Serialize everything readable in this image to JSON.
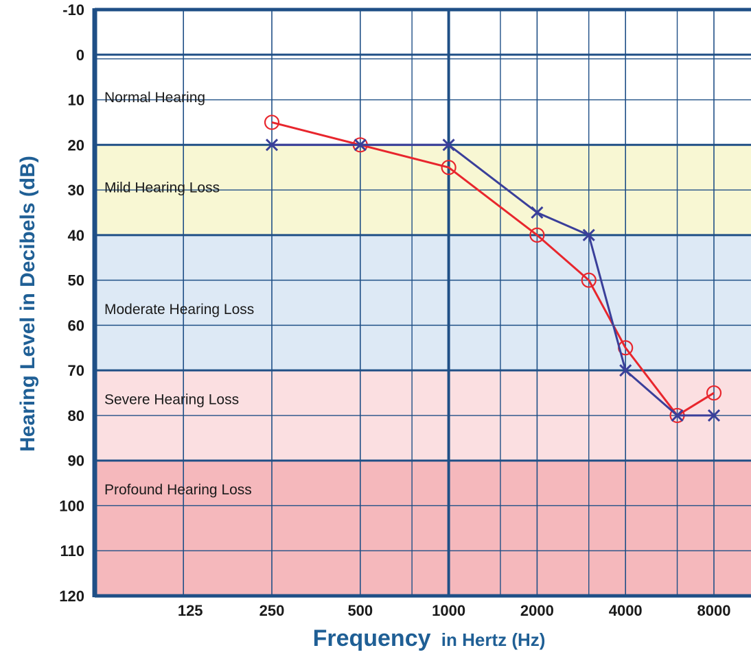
{
  "chart_data": {
    "type": "line",
    "title": "",
    "xlabel_main": "Frequency",
    "xlabel_rest": "in Hertz (Hz)",
    "ylabel": "Hearing Level in Decibels (dB)",
    "x_scale": "log2",
    "y_inverted": true,
    "ylim": [
      -10,
      120
    ],
    "xlim": [
      62.5,
      11314
    ],
    "y_ticks": [
      -10,
      0,
      10,
      20,
      30,
      40,
      50,
      60,
      70,
      80,
      90,
      100,
      110,
      120
    ],
    "y_tick_labels": [
      "-10",
      "0",
      "10",
      "20",
      "30",
      "40",
      "50",
      "60",
      "70",
      "80",
      "90",
      "100",
      "110",
      "120"
    ],
    "x_ticks": [
      125,
      250,
      500,
      1000,
      2000,
      4000,
      8000
    ],
    "x_tick_labels": [
      "125",
      "250",
      "500",
      "1000",
      "2000",
      "4000",
      "8000"
    ],
    "x_minor_grid": [
      750,
      1500,
      3000,
      6000
    ],
    "zones": [
      {
        "label": "Normal Hearing",
        "from": 0,
        "to": 20,
        "color": "#ffffff"
      },
      {
        "label": "Mild Hearing Loss",
        "from": 20,
        "to": 40,
        "color": "#f8f7d3"
      },
      {
        "label": "Moderate Hearing Loss",
        "from": 40,
        "to": 70,
        "color": "#dde9f5"
      },
      {
        "label": "Severe Hearing Loss",
        "from": 70,
        "to": 90,
        "color": "#fbdfe1"
      },
      {
        "label": "Profound Hearing Loss",
        "from": 90,
        "to": 120,
        "color": "#f5b8bc"
      }
    ],
    "series": [
      {
        "marker": "circle",
        "color": "#e8262d",
        "x": [
          250,
          500,
          1000,
          2000,
          3000,
          4000,
          6000,
          8000
        ],
        "y": [
          15,
          20,
          25,
          40,
          50,
          65,
          80,
          75
        ]
      },
      {
        "marker": "x",
        "color": "#3a3f9a",
        "x": [
          250,
          500,
          1000,
          2000,
          3000,
          4000,
          6000,
          8000
        ],
        "y": [
          20,
          20,
          20,
          35,
          40,
          70,
          80,
          80
        ]
      }
    ]
  }
}
